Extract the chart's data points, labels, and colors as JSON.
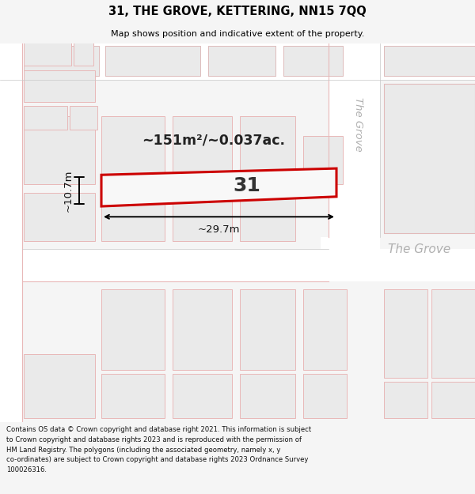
{
  "title": "31, THE GROVE, KETTERING, NN15 7QQ",
  "subtitle": "Map shows position and indicative extent of the property.",
  "area_text": "~151m²/~0.037ac.",
  "dim_width": "~29.7m",
  "dim_height": "~10.7m",
  "label": "31",
  "footer_lines": [
    "Contains OS data © Crown copyright and database right 2021. This information is subject",
    "to Crown copyright and database rights 2023 and is reproduced with the permission of",
    "HM Land Registry. The polygons (including the associated geometry, namely x, y",
    "co-ordinates) are subject to Crown copyright and database rights 2023 Ordnance Survey",
    "100026316."
  ],
  "bg_color": "#f5f5f5",
  "map_bg": "#f5f5f5",
  "road_color": "#ffffff",
  "plot_line_color": "#cc0000",
  "bld_fill": "#eaeaea",
  "bld_edge_pink": "#e8b8b8",
  "bld_edge_gray": "#c8c8c8",
  "road_label_color": "#b0b0b0",
  "footer_bg": "#ffffff",
  "title_color": "#000000",
  "footer_color": "#111111",
  "dim_color": "#111111",
  "label_color": "#333333",
  "area_color": "#222222"
}
